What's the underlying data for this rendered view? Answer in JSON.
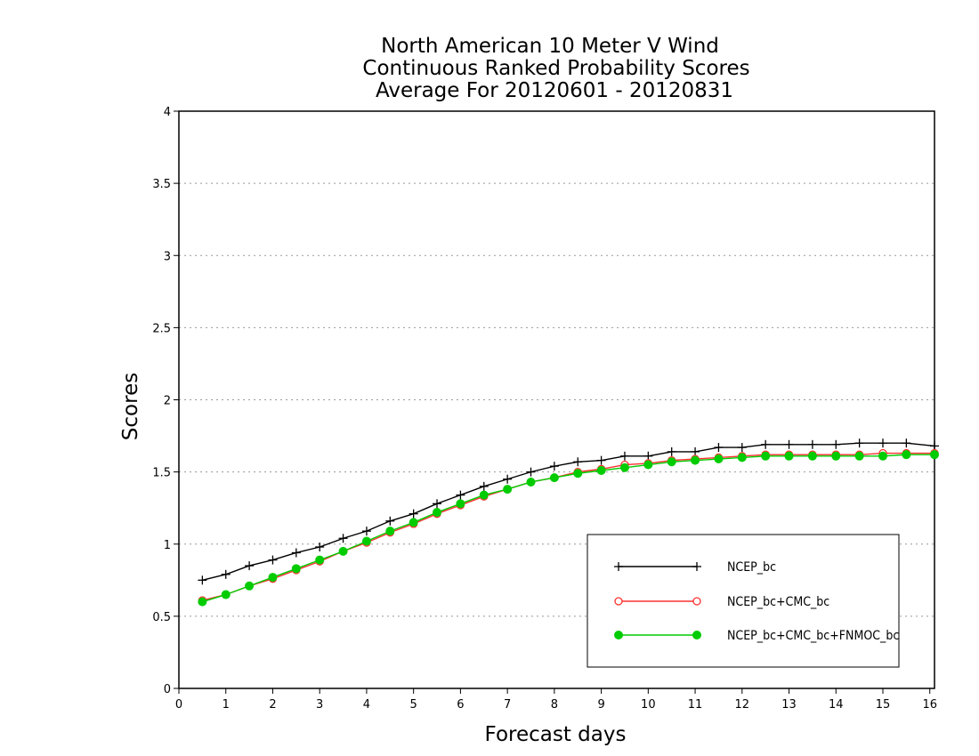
{
  "chart_data": {
    "type": "line",
    "title": [
      "North American 10 Meter V Wind",
      "Continuous Ranked Probability Scores",
      "Average For 20120601 - 20120831"
    ],
    "xlabel": "Forecast days",
    "ylabel": "Scores",
    "xlim": [
      0,
      16.1
    ],
    "ylim": [
      0,
      4
    ],
    "xticks": [
      "0",
      "1",
      "2",
      "3",
      "4",
      "5",
      "6",
      "7",
      "8",
      "9",
      "10",
      "11",
      "12",
      "13",
      "14",
      "15",
      "16"
    ],
    "yticks": [
      "0",
      "0.5",
      "1",
      "1.5",
      "2",
      "2.5",
      "3",
      "3.5",
      "4"
    ],
    "grid": "horizontal-dotted",
    "legend_position": "bottom-right",
    "x": [
      0.5,
      1,
      1.5,
      2,
      2.5,
      3,
      3.5,
      4,
      4.5,
      5,
      5.5,
      6,
      6.5,
      7,
      7.5,
      8,
      8.5,
      9,
      9.5,
      10,
      10.5,
      11,
      11.5,
      12,
      12.5,
      13,
      13.5,
      14,
      14.5,
      15,
      15.5,
      16.1
    ],
    "series": [
      {
        "name": "NCEP_bc",
        "color": "#000000",
        "marker": "plus",
        "values": [
          0.75,
          0.79,
          0.85,
          0.89,
          0.94,
          0.98,
          1.04,
          1.09,
          1.16,
          1.21,
          1.28,
          1.34,
          1.4,
          1.45,
          1.5,
          1.54,
          1.57,
          1.58,
          1.61,
          1.61,
          1.64,
          1.64,
          1.67,
          1.67,
          1.69,
          1.69,
          1.69,
          1.69,
          1.7,
          1.7,
          1.7,
          1.68
        ]
      },
      {
        "name": "NCEP_bc+CMC_bc",
        "color": "#ff3030",
        "marker": "open-circle",
        "values": [
          0.61,
          0.65,
          0.71,
          0.76,
          0.82,
          0.88,
          0.95,
          1.01,
          1.08,
          1.14,
          1.21,
          1.27,
          1.33,
          1.38,
          1.43,
          1.46,
          1.5,
          1.52,
          1.55,
          1.56,
          1.58,
          1.59,
          1.6,
          1.61,
          1.62,
          1.62,
          1.62,
          1.62,
          1.62,
          1.63,
          1.63,
          1.63
        ]
      },
      {
        "name": "NCEP_bc+CMC_bc+FNMOC_bc",
        "color": "#00cc00",
        "marker": "filled-circle",
        "values": [
          0.6,
          0.65,
          0.71,
          0.77,
          0.83,
          0.89,
          0.95,
          1.02,
          1.09,
          1.15,
          1.22,
          1.28,
          1.34,
          1.38,
          1.43,
          1.46,
          1.49,
          1.51,
          1.53,
          1.55,
          1.57,
          1.58,
          1.59,
          1.6,
          1.61,
          1.61,
          1.61,
          1.61,
          1.61,
          1.61,
          1.62,
          1.62
        ]
      }
    ]
  }
}
